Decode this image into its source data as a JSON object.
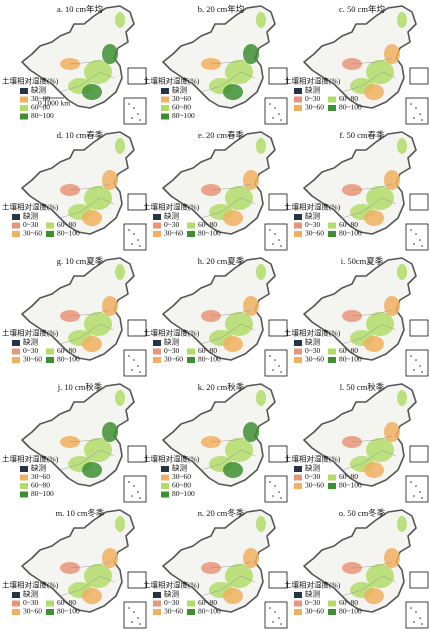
{
  "panels": [
    {
      "title": "a. 10 cm年均",
      "legend_title": "土壤相对湿度(%)",
      "scale_bar": "0   1000 km",
      "legend": [
        {
          "label": "缺测",
          "color": "#253545"
        },
        {
          "label": "30~60",
          "color": "#f0b060"
        },
        {
          "label": "60~80",
          "color": "#b0dc68"
        },
        {
          "label": "80~100",
          "color": "#3e8e32"
        }
      ]
    },
    {
      "title": "b. 20 cm年均",
      "legend_title": "土壤相对湿度(%)",
      "legend": [
        {
          "label": "缺测",
          "color": "#253545"
        },
        {
          "label": "30~60",
          "color": "#f0b060"
        },
        {
          "label": "60~80",
          "color": "#b0dc68"
        },
        {
          "label": "80~100",
          "color": "#3e8e32"
        }
      ]
    },
    {
      "title": "c. 50 cm年均",
      "legend_title": "土壤相对湿度(%)",
      "legend": [
        {
          "label": "缺测",
          "color": "#253545"
        },
        {
          "label": "0~30",
          "color": "#e8957a"
        },
        {
          "label": "60~80",
          "color": "#b0dc68"
        },
        {
          "label": "30~60",
          "color": "#f0b060"
        },
        {
          "label": "80~100",
          "color": "#3e8e32"
        }
      ]
    },
    {
      "title": "d. 10 cm春季",
      "legend_title": "土壤相对湿度(%)",
      "legend": [
        {
          "label": "缺测",
          "color": "#253545"
        },
        {
          "label": "0~30",
          "color": "#e8957a"
        },
        {
          "label": "60~80",
          "color": "#b0dc68"
        },
        {
          "label": "30~60",
          "color": "#f0b060"
        },
        {
          "label": "80~100",
          "color": "#3e8e32"
        }
      ]
    },
    {
      "title": "e. 20 cm春季",
      "legend_title": "土壤相对湿度(%)",
      "legend": [
        {
          "label": "缺测",
          "color": "#253545"
        },
        {
          "label": "0~30",
          "color": "#e8957a"
        },
        {
          "label": "60~80",
          "color": "#b0dc68"
        },
        {
          "label": "30~60",
          "color": "#f0b060"
        },
        {
          "label": "80~100",
          "color": "#3e8e32"
        }
      ]
    },
    {
      "title": "f. 50 cm春季",
      "legend_title": "土壤相对湿度(%)",
      "legend": [
        {
          "label": "缺测",
          "color": "#253545"
        },
        {
          "label": "0~30",
          "color": "#e8957a"
        },
        {
          "label": "60~80",
          "color": "#b0dc68"
        },
        {
          "label": "30~60",
          "color": "#f0b060"
        },
        {
          "label": "80~100",
          "color": "#3e8e32"
        }
      ]
    },
    {
      "title": "g. 10 cm夏季",
      "legend_title": "土壤相对湿度(%)",
      "legend": [
        {
          "label": "缺测",
          "color": "#253545"
        },
        {
          "label": "0~30",
          "color": "#e8957a"
        },
        {
          "label": "60~80",
          "color": "#b0dc68"
        },
        {
          "label": "30~60",
          "color": "#f0b060"
        },
        {
          "label": "80~100",
          "color": "#3e8e32"
        }
      ]
    },
    {
      "title": "h. 20 cm夏季",
      "legend_title": "土壤相对湿度(%)",
      "legend": [
        {
          "label": "缺测",
          "color": "#253545"
        },
        {
          "label": "0~30",
          "color": "#e8957a"
        },
        {
          "label": "60~80",
          "color": "#b0dc68"
        },
        {
          "label": "30~60",
          "color": "#f0b060"
        },
        {
          "label": "80~100",
          "color": "#3e8e32"
        }
      ]
    },
    {
      "title": "i. 50cm夏季",
      "legend_title": "土壤相对湿度(%)",
      "legend": [
        {
          "label": "缺测",
          "color": "#253545"
        },
        {
          "label": "0~30",
          "color": "#e8957a"
        },
        {
          "label": "60~80",
          "color": "#b0dc68"
        },
        {
          "label": "30~60",
          "color": "#f0b060"
        },
        {
          "label": "80~100",
          "color": "#3e8e32"
        }
      ]
    },
    {
      "title": "j. 10 cm秋季",
      "legend_title": "土壤相对湿度(%)",
      "legend": [
        {
          "label": "缺测",
          "color": "#253545"
        },
        {
          "label": "30~60",
          "color": "#f0b060"
        },
        {
          "label": "60~80",
          "color": "#b0dc68"
        },
        {
          "label": "80~100",
          "color": "#3e8e32"
        }
      ]
    },
    {
      "title": "k. 20 cm秋季",
      "legend_title": "土壤相对湿度(%)",
      "legend": [
        {
          "label": "缺测",
          "color": "#253545"
        },
        {
          "label": "30~60",
          "color": "#f0b060"
        },
        {
          "label": "60~80",
          "color": "#b0dc68"
        },
        {
          "label": "80~100",
          "color": "#3e8e32"
        }
      ]
    },
    {
      "title": "l. 50 cm秋季",
      "legend_title": "土壤相对湿度(%)",
      "legend": [
        {
          "label": "缺测",
          "color": "#253545"
        },
        {
          "label": "0~30",
          "color": "#e8957a"
        },
        {
          "label": "60~80",
          "color": "#b0dc68"
        },
        {
          "label": "30~60",
          "color": "#f0b060"
        },
        {
          "label": "80~100",
          "color": "#3e8e32"
        }
      ]
    },
    {
      "title": "m. 10 cm冬季",
      "legend_title": "土壤相对湿度(%)",
      "legend": [
        {
          "label": "缺测",
          "color": "#253545"
        },
        {
          "label": "0~30",
          "color": "#e8957a"
        },
        {
          "label": "60~80",
          "color": "#b0dc68"
        },
        {
          "label": "30~60",
          "color": "#f0b060"
        },
        {
          "label": "80~100",
          "color": "#3e8e32"
        }
      ]
    },
    {
      "title": "n. 20 cm冬季",
      "legend_title": "土壤相对湿度(%)",
      "legend": [
        {
          "label": "缺测",
          "color": "#253545"
        },
        {
          "label": "0~30",
          "color": "#e8957a"
        },
        {
          "label": "60~80",
          "color": "#b0dc68"
        },
        {
          "label": "30~60",
          "color": "#f0b060"
        },
        {
          "label": "80~100",
          "color": "#3e8e32"
        }
      ]
    },
    {
      "title": "o. 50 cm冬季",
      "legend_title": "土壤相对湿度(%)",
      "legend": [
        {
          "label": "缺测",
          "color": "#253545"
        },
        {
          "label": "0~30",
          "color": "#e8957a"
        },
        {
          "label": "60~80",
          "color": "#b0dc68"
        },
        {
          "label": "30~60",
          "color": "#f0b060"
        },
        {
          "label": "80~100",
          "color": "#3e8e32"
        }
      ]
    }
  ]
}
